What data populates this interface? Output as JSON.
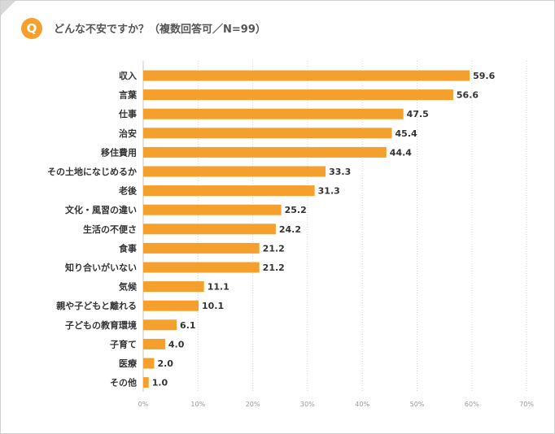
{
  "header": {
    "badge": "Q",
    "question": "どんな不安ですか？（複数回答可／N=99）"
  },
  "colors": {
    "bar": "#f5a02c",
    "badge": "#f5a02c",
    "grid": "#d6d6d6"
  },
  "chart_data": {
    "type": "bar",
    "orientation": "horizontal",
    "title": "",
    "xlabel": "",
    "ylabel": "",
    "xlim": [
      0,
      70
    ],
    "grid": "vertical-dotted",
    "categories": [
      "収入",
      "言葉",
      "仕事",
      "治安",
      "移住費用",
      "その土地になじめるか",
      "老後",
      "文化・風習の違い",
      "生活の不便さ",
      "食事",
      "知り合いがいない",
      "気候",
      "親や子どもと離れる",
      "子どもの教育環境",
      "子育て",
      "医療",
      "その他"
    ],
    "values": [
      59.6,
      56.6,
      47.5,
      45.4,
      44.4,
      33.3,
      31.3,
      25.2,
      24.2,
      21.2,
      21.2,
      11.1,
      10.1,
      6.1,
      4.0,
      2.0,
      1.0
    ],
    "value_labels": [
      "59.6",
      "56.6",
      "47.5",
      "45.4",
      "44.4",
      "33.3",
      "31.3",
      "25.2",
      "24.2",
      "21.2",
      "21.2",
      "11.1",
      "10.1",
      "6.1",
      "4.0",
      "2.0",
      "1.0"
    ],
    "ticks": [
      0,
      10,
      20,
      30,
      40,
      50,
      60,
      70
    ],
    "tick_labels": [
      "0%",
      "10%",
      "20%",
      "30%",
      "40%",
      "50%",
      "60%",
      "70%"
    ]
  }
}
